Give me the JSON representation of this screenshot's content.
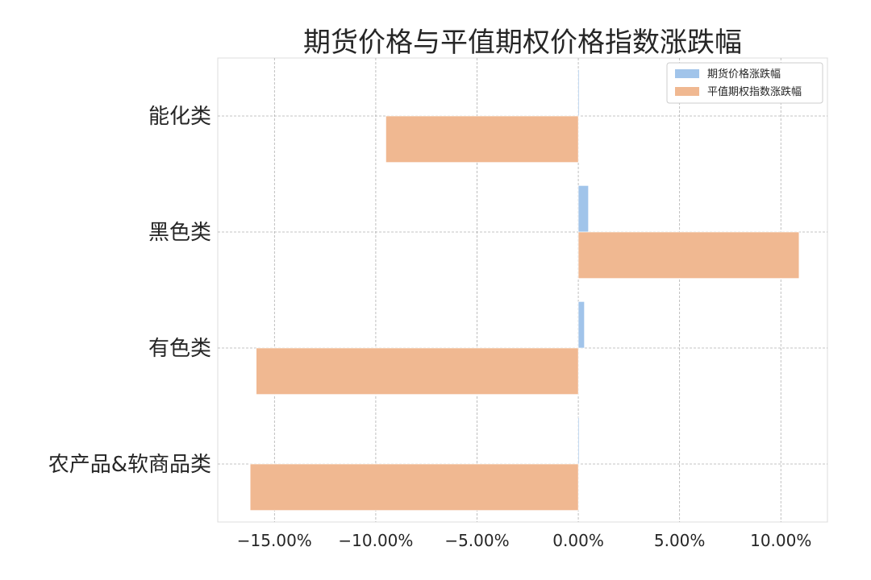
{
  "chart_data": {
    "type": "bar",
    "orientation": "horizontal",
    "title": "期货价格与平值期权价格指数涨跌幅",
    "xlabel": "",
    "ylabel": "",
    "categories": [
      "能化类",
      "黑色类",
      "有色类",
      "农产品&软商品类"
    ],
    "series": [
      {
        "name": "期货价格涨跌幅",
        "color": "#a1c4ea",
        "values": [
          0.05,
          0.5,
          0.3,
          0.05
        ]
      },
      {
        "name": "平值期权指数涨跌幅",
        "color": "#f0b891",
        "values": [
          -9.5,
          10.9,
          -15.9,
          -16.2
        ]
      }
    ],
    "xlim": [
      -17.8,
      12.3
    ],
    "xticks": [
      -15,
      -10,
      -5,
      0,
      5,
      10
    ],
    "xtick_labels": [
      "−15.00%",
      "−10.00%",
      "−5.00%",
      "0.00%",
      "5.00%",
      "10.00%"
    ],
    "grid": true,
    "legend_position": "top-right"
  }
}
